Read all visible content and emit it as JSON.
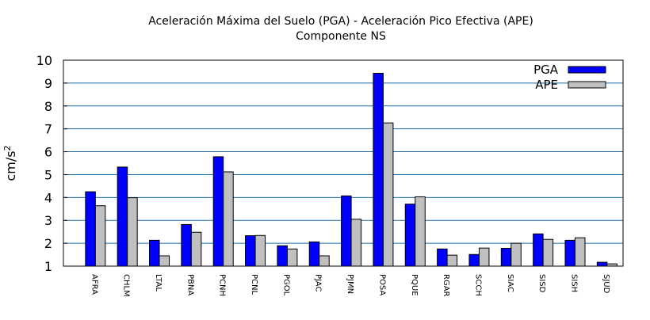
{
  "chart_data": {
    "type": "bar",
    "title": "Aceleración Máxima del Suelo (PGA) -   Aceleración Pico Efectiva (APE)",
    "subtitle": "Componente NS",
    "ylabel": "cm/s",
    "ylabel_superscript": "2",
    "xlabel": "",
    "ylim": [
      1,
      10
    ],
    "yticks": [
      1,
      2,
      3,
      4,
      5,
      6,
      7,
      8,
      9,
      10
    ],
    "grid": "horizontal",
    "legend_position": "top-right",
    "categories": [
      "AFRA",
      "CHLM",
      "LTAL",
      "PBNA",
      "PCNH",
      "PCNL",
      "PGOL",
      "PJAC",
      "PJMN",
      "POSA",
      "PQUE",
      "RGAR",
      "SCCH",
      "SIAC",
      "SISD",
      "SISH",
      "SJUD"
    ],
    "series": [
      {
        "name": "PGA",
        "color": "#0000ff",
        "values": [
          4.25,
          5.33,
          2.13,
          2.82,
          5.78,
          2.33,
          1.89,
          2.06,
          4.07,
          9.43,
          3.71,
          1.75,
          1.51,
          1.78,
          2.41,
          2.13,
          1.17
        ]
      },
      {
        "name": "APE",
        "color": "#c0c0c0",
        "values": [
          3.64,
          3.99,
          1.45,
          2.48,
          5.12,
          2.34,
          1.75,
          1.45,
          3.05,
          7.26,
          4.03,
          1.48,
          1.79,
          2.0,
          2.17,
          2.24,
          1.1
        ]
      }
    ],
    "colors": {
      "grid": "#1a6ba8",
      "axis": "#000000"
    }
  }
}
